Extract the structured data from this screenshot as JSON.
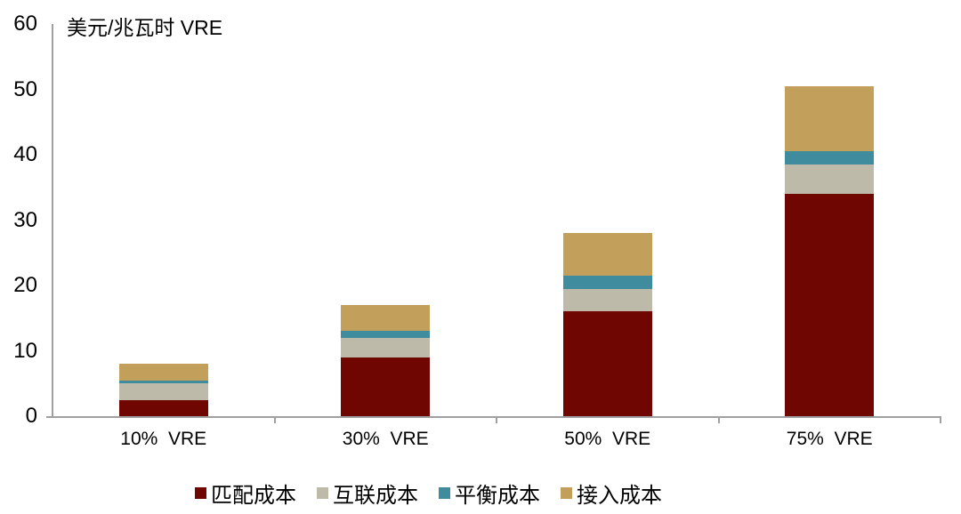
{
  "chart_data": {
    "type": "bar",
    "stacked": true,
    "title": "美元/兆瓦时 VRE",
    "categories": [
      "10%  VRE",
      "30%  VRE",
      "50%  VRE",
      "75%  VRE"
    ],
    "series": [
      {
        "name": "匹配成本",
        "color": "#6F0602",
        "values": [
          2.5,
          9,
          16,
          34
        ]
      },
      {
        "name": "互联成本",
        "color": "#BDBAA9",
        "values": [
          2.5,
          3,
          3.5,
          4.5
        ]
      },
      {
        "name": "平衡成本",
        "color": "#3E8C9E",
        "values": [
          0.5,
          1,
          2,
          2
        ]
      },
      {
        "name": "接入成本",
        "color": "#C2A05B",
        "values": [
          2.5,
          4,
          6.5,
          10
        ]
      }
    ],
    "stack_totals": [
      8,
      17,
      28,
      50.5
    ],
    "y_axis": {
      "label": "美元/兆瓦时 VRE",
      "min": 0,
      "max": 60,
      "tick_interval": 10,
      "ticks": [
        0,
        10,
        20,
        30,
        40,
        50,
        60
      ]
    },
    "legend_position": "bottom",
    "grid": false,
    "axis_color": "#a0a0a0"
  }
}
